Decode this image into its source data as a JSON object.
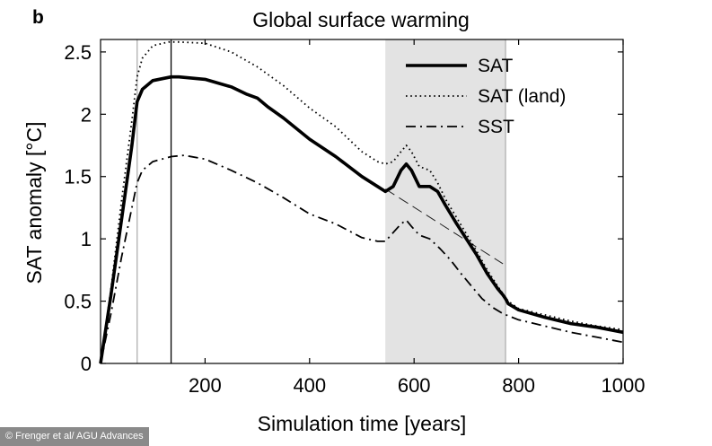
{
  "panel_label": "b",
  "credit": "© Frenger et al/ AGU Advances",
  "chart_data": {
    "type": "line",
    "title": "Global surface warming",
    "xlabel": "Simulation time [years]",
    "ylabel": "SAT anomaly [°C]",
    "xlim": [
      0,
      1000
    ],
    "ylim": [
      0,
      2.6
    ],
    "x_ticks": [
      200,
      400,
      600,
      800,
      1000
    ],
    "y_ticks": [
      0,
      0.5,
      1,
      1.5,
      2,
      2.5
    ],
    "x_tick_labels": [
      "200",
      "400",
      "600",
      "800",
      "1000"
    ],
    "y_tick_labels": [
      "0",
      "0.5",
      "1",
      "1.5",
      "2",
      "2.5"
    ],
    "legend_position": "top-right",
    "shaded_region": {
      "x_start": 545,
      "x_end": 775,
      "color": "#e3e3e3"
    },
    "vertical_lines": [
      {
        "x": 70,
        "color": "#b0b0b0"
      },
      {
        "x": 135,
        "color": "#000000"
      },
      {
        "x": 775,
        "color": "#b0b0b0"
      }
    ],
    "reference_line": {
      "x": [
        545,
        770
      ],
      "y": [
        1.4,
        0.8
      ],
      "style": "long-dash"
    },
    "series": [
      {
        "name": "SAT",
        "style": "solid",
        "x": [
          0,
          20,
          40,
          60,
          70,
          80,
          100,
          135,
          150,
          200,
          250,
          280,
          300,
          320,
          350,
          400,
          450,
          500,
          530,
          545,
          560,
          575,
          585,
          595,
          610,
          630,
          645,
          660,
          680,
          700,
          720,
          740,
          760,
          770,
          775,
          780,
          800,
          850,
          900,
          950,
          1000
        ],
        "values": [
          0,
          0.55,
          1.15,
          1.75,
          2.1,
          2.2,
          2.27,
          2.3,
          2.3,
          2.28,
          2.22,
          2.16,
          2.13,
          2.06,
          1.97,
          1.8,
          1.66,
          1.5,
          1.42,
          1.38,
          1.42,
          1.55,
          1.6,
          1.55,
          1.42,
          1.42,
          1.38,
          1.27,
          1.13,
          1.0,
          0.87,
          0.72,
          0.6,
          0.55,
          0.52,
          0.48,
          0.43,
          0.37,
          0.32,
          0.29,
          0.25
        ]
      },
      {
        "name": "SAT (land)",
        "style": "dotted",
        "x": [
          0,
          20,
          40,
          60,
          70,
          80,
          100,
          130,
          150,
          200,
          250,
          300,
          350,
          400,
          450,
          500,
          530,
          545,
          560,
          575,
          585,
          595,
          610,
          630,
          645,
          660,
          680,
          700,
          720,
          740,
          760,
          770,
          780,
          800,
          850,
          900,
          950,
          1000
        ],
        "values": [
          0,
          0.6,
          1.3,
          1.95,
          2.3,
          2.45,
          2.55,
          2.58,
          2.58,
          2.57,
          2.5,
          2.38,
          2.23,
          2.05,
          1.9,
          1.7,
          1.62,
          1.6,
          1.62,
          1.7,
          1.75,
          1.7,
          1.58,
          1.55,
          1.45,
          1.32,
          1.18,
          1.04,
          0.9,
          0.75,
          0.62,
          0.56,
          0.5,
          0.44,
          0.39,
          0.34,
          0.3,
          0.27
        ]
      },
      {
        "name": "SST",
        "style": "dash-dot",
        "x": [
          0,
          20,
          40,
          60,
          70,
          80,
          100,
          135,
          160,
          200,
          250,
          300,
          350,
          400,
          450,
          500,
          530,
          545,
          560,
          575,
          585,
          595,
          610,
          630,
          650,
          670,
          690,
          710,
          730,
          750,
          770,
          800,
          850,
          900,
          950,
          1000
        ],
        "values": [
          0,
          0.4,
          0.85,
          1.25,
          1.45,
          1.55,
          1.62,
          1.66,
          1.67,
          1.64,
          1.55,
          1.45,
          1.33,
          1.2,
          1.12,
          1.01,
          0.98,
          0.98,
          1.05,
          1.12,
          1.15,
          1.1,
          1.03,
          1.0,
          0.92,
          0.83,
          0.72,
          0.62,
          0.52,
          0.45,
          0.4,
          0.35,
          0.3,
          0.25,
          0.21,
          0.17
        ]
      }
    ]
  }
}
